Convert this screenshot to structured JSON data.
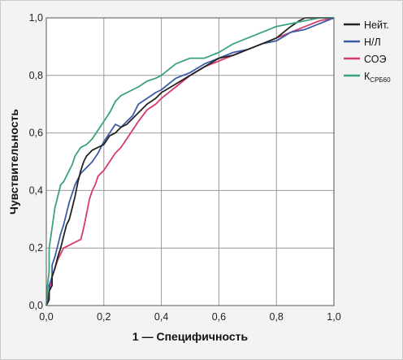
{
  "chart_data": {
    "type": "line",
    "title": "",
    "xlabel": "1 — Специфичность",
    "ylabel": "Чувствительность",
    "xlim": [
      0,
      1
    ],
    "ylim": [
      0,
      1
    ],
    "x_ticks": [
      "0,0",
      "0,2",
      "0,4",
      "0,6",
      "0,8",
      "1,0"
    ],
    "y_ticks": [
      "0,0",
      "0,2",
      "0,4",
      "0,6",
      "0,8",
      "1,0"
    ],
    "grid": true,
    "legend_position": "top-right",
    "series": [
      {
        "name": "Нейт.",
        "color": "#222222",
        "x": [
          0,
          0.01,
          0.01,
          0.02,
          0.02,
          0.03,
          0.04,
          0.05,
          0.06,
          0.07,
          0.08,
          0.09,
          0.1,
          0.11,
          0.12,
          0.13,
          0.14,
          0.15,
          0.16,
          0.18,
          0.2,
          0.22,
          0.24,
          0.26,
          0.28,
          0.3,
          0.32,
          0.35,
          0.38,
          0.4,
          0.45,
          0.5,
          0.55,
          0.6,
          0.65,
          0.7,
          0.75,
          0.8,
          0.85,
          0.88,
          0.9,
          0.95,
          1.0
        ],
        "y": [
          0,
          0.02,
          0.05,
          0.07,
          0.1,
          0.13,
          0.17,
          0.2,
          0.24,
          0.28,
          0.3,
          0.34,
          0.38,
          0.43,
          0.47,
          0.5,
          0.52,
          0.53,
          0.54,
          0.55,
          0.56,
          0.59,
          0.6,
          0.62,
          0.63,
          0.65,
          0.67,
          0.7,
          0.72,
          0.74,
          0.77,
          0.8,
          0.83,
          0.86,
          0.87,
          0.89,
          0.91,
          0.93,
          0.97,
          0.99,
          1.0,
          1.0,
          1.0
        ]
      },
      {
        "name": "Н/Л",
        "color": "#3a5ca8",
        "x": [
          0,
          0.01,
          0.01,
          0.02,
          0.02,
          0.03,
          0.04,
          0.05,
          0.06,
          0.07,
          0.08,
          0.09,
          0.1,
          0.12,
          0.14,
          0.16,
          0.18,
          0.2,
          0.22,
          0.24,
          0.26,
          0.28,
          0.3,
          0.32,
          0.35,
          0.38,
          0.4,
          0.45,
          0.5,
          0.55,
          0.6,
          0.65,
          0.7,
          0.75,
          0.8,
          0.85,
          0.9,
          0.95,
          1.0
        ],
        "y": [
          0,
          0.04,
          0.07,
          0.1,
          0.14,
          0.17,
          0.21,
          0.25,
          0.28,
          0.32,
          0.36,
          0.39,
          0.42,
          0.46,
          0.48,
          0.5,
          0.53,
          0.57,
          0.6,
          0.63,
          0.62,
          0.64,
          0.66,
          0.7,
          0.72,
          0.74,
          0.75,
          0.79,
          0.81,
          0.84,
          0.86,
          0.88,
          0.89,
          0.91,
          0.92,
          0.95,
          0.96,
          0.98,
          1.0
        ]
      },
      {
        "name": "СОЭ",
        "color": "#d63a6a",
        "x": [
          0,
          0.01,
          0.02,
          0.03,
          0.04,
          0.05,
          0.06,
          0.08,
          0.1,
          0.12,
          0.13,
          0.14,
          0.15,
          0.16,
          0.17,
          0.18,
          0.2,
          0.22,
          0.24,
          0.26,
          0.28,
          0.3,
          0.32,
          0.35,
          0.38,
          0.4,
          0.45,
          0.5,
          0.55,
          0.6,
          0.65,
          0.7,
          0.75,
          0.8,
          0.85,
          0.9,
          0.95,
          1.0
        ],
        "y": [
          0,
          0.05,
          0.1,
          0.13,
          0.16,
          0.18,
          0.2,
          0.21,
          0.22,
          0.23,
          0.27,
          0.32,
          0.37,
          0.4,
          0.42,
          0.45,
          0.47,
          0.5,
          0.53,
          0.55,
          0.58,
          0.61,
          0.64,
          0.68,
          0.7,
          0.72,
          0.76,
          0.8,
          0.83,
          0.85,
          0.87,
          0.89,
          0.91,
          0.93,
          0.95,
          0.97,
          0.99,
          1.0
        ]
      },
      {
        "name": "Кᴄᴘʙ60",
        "label_main": "К",
        "label_sub": "СРБ60",
        "color": "#3aa378",
        "x": [
          0,
          0.005,
          0.01,
          0.01,
          0.02,
          0.03,
          0.04,
          0.05,
          0.06,
          0.07,
          0.08,
          0.09,
          0.1,
          0.12,
          0.14,
          0.16,
          0.18,
          0.2,
          0.22,
          0.24,
          0.26,
          0.28,
          0.3,
          0.32,
          0.35,
          0.38,
          0.4,
          0.45,
          0.5,
          0.55,
          0.6,
          0.65,
          0.7,
          0.75,
          0.8,
          0.85,
          0.9,
          0.95,
          1.0
        ],
        "y": [
          0,
          0.08,
          0.12,
          0.2,
          0.27,
          0.34,
          0.38,
          0.42,
          0.43,
          0.45,
          0.47,
          0.49,
          0.52,
          0.55,
          0.56,
          0.58,
          0.61,
          0.64,
          0.67,
          0.71,
          0.73,
          0.74,
          0.75,
          0.76,
          0.78,
          0.79,
          0.8,
          0.84,
          0.86,
          0.86,
          0.88,
          0.91,
          0.93,
          0.95,
          0.97,
          0.98,
          0.99,
          1.0,
          1.0
        ]
      }
    ]
  }
}
